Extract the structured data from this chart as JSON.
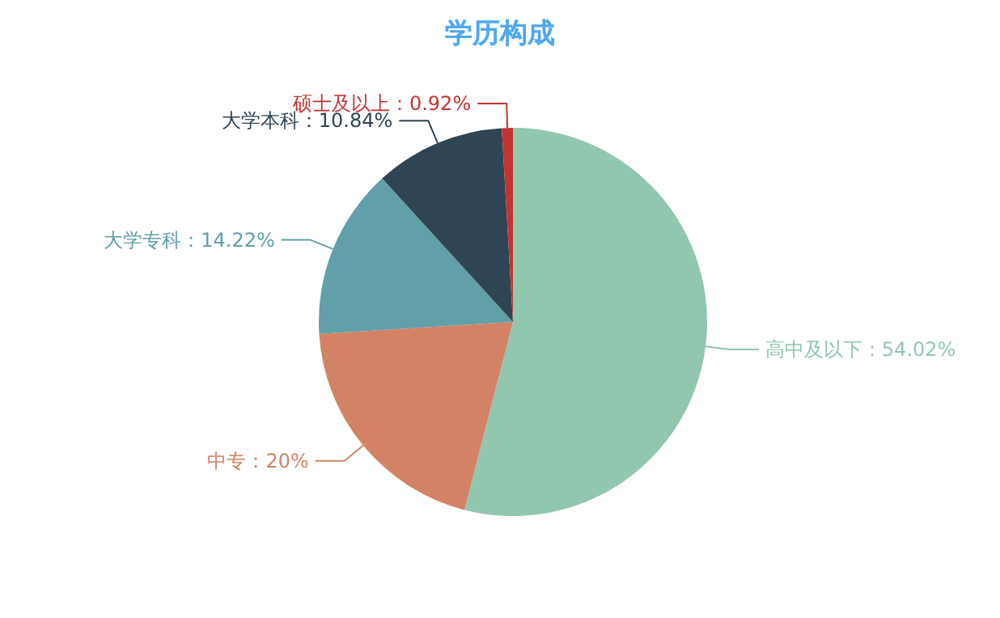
{
  "chart_data": {
    "type": "pie",
    "title": "学历构成",
    "categories": [
      "高中及以下",
      "中专",
      "大学专科",
      "大学本科",
      "硕士及以上"
    ],
    "values": [
      54.02,
      20,
      14.22,
      10.84,
      0.92
    ],
    "value_labels": [
      "54.02%",
      "20%",
      "14.22%",
      "10.84%",
      "0.92%"
    ],
    "colors": [
      "#91c7ae",
      "#d48265",
      "#61a0a8",
      "#2f4554",
      "#c23531"
    ]
  }
}
